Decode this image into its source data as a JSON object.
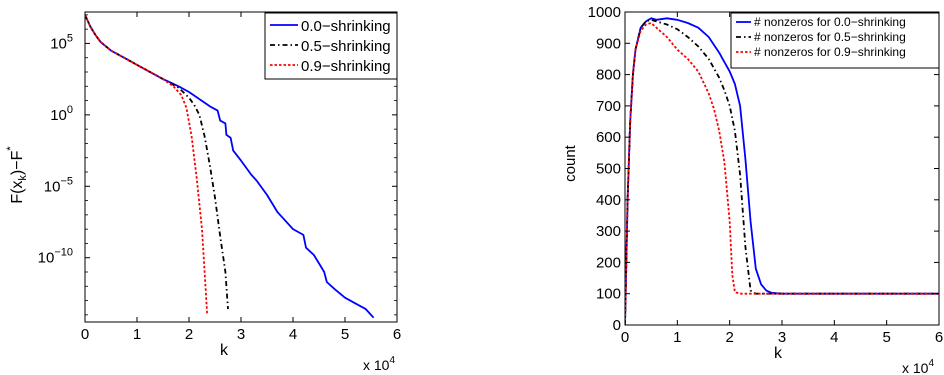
{
  "chart_data": [
    {
      "type": "line",
      "title": "",
      "xlabel": "k",
      "ylabel": "F(x_k)-F^*",
      "ylabel_parts": {
        "base": "F(x",
        "sub": "k",
        "mid": ")−F",
        "sup": "*"
      },
      "x_multiplier": "x 10",
      "x_multiplier_exp": "4",
      "xscale": "linear",
      "yscale": "log",
      "xlim": [
        0,
        6
      ],
      "ylim_log10": [
        -14.5,
        7.2
      ],
      "xticks": [
        0,
        1,
        2,
        3,
        4,
        5,
        6
      ],
      "yticks_log10": [
        5,
        0,
        -5,
        -10
      ],
      "ytick_labels": [
        {
          "base": "10",
          "exp": "5"
        },
        {
          "base": "10",
          "exp": "0"
        },
        {
          "base": "10",
          "exp": "−5"
        },
        {
          "base": "10",
          "exp": "−10"
        }
      ],
      "legend": {
        "placement": "top-right"
      },
      "grid": false,
      "series": [
        {
          "name": "0.0−shrinking",
          "color": "#0000ff",
          "dash": "solid",
          "x": [
            0,
            0.05,
            0.1,
            0.2,
            0.3,
            0.5,
            0.8,
            1.0,
            1.2,
            1.5,
            1.8,
            2.0,
            2.2,
            2.4,
            2.55,
            2.6,
            2.7,
            2.72,
            2.8,
            2.85,
            3.0,
            3.2,
            3.3,
            3.5,
            3.7,
            3.8,
            4.0,
            4.2,
            4.25,
            4.4,
            4.5,
            4.6,
            4.65,
            4.8,
            5.0,
            5.2,
            5.4,
            5.5,
            5.55
          ],
          "y_log10": [
            7.0,
            6.6,
            6.2,
            5.6,
            5.1,
            4.5,
            3.9,
            3.5,
            3.1,
            2.5,
            2.0,
            1.6,
            1.1,
            0.6,
            0.3,
            -0.4,
            -0.6,
            -1.4,
            -1.6,
            -2.5,
            -3.2,
            -4.2,
            -4.6,
            -5.6,
            -6.8,
            -7.2,
            -8.0,
            -8.4,
            -9.3,
            -9.8,
            -10.4,
            -11.0,
            -11.7,
            -12.2,
            -12.8,
            -13.2,
            -13.6,
            -14.0,
            -14.2
          ]
        },
        {
          "name": "0.5−shrinking",
          "color": "#000000",
          "dash": "dashdot",
          "x": [
            0,
            0.05,
            0.1,
            0.2,
            0.3,
            0.5,
            0.8,
            1.0,
            1.2,
            1.5,
            1.8,
            2.0,
            2.1,
            2.2,
            2.3,
            2.4,
            2.5,
            2.6,
            2.7,
            2.75
          ],
          "y_log10": [
            7.0,
            6.6,
            6.2,
            5.6,
            5.1,
            4.5,
            3.9,
            3.5,
            3.1,
            2.5,
            1.9,
            1.2,
            0.7,
            0.0,
            -1.5,
            -3.5,
            -5.8,
            -8.5,
            -11.0,
            -13.6
          ]
        },
        {
          "name": "0.9−shrinking",
          "color": "#ff0000",
          "dash": "dotted",
          "x": [
            0,
            0.05,
            0.1,
            0.2,
            0.3,
            0.5,
            0.8,
            1.0,
            1.2,
            1.5,
            1.7,
            1.85,
            1.95,
            2.05,
            2.15,
            2.25,
            2.3,
            2.35
          ],
          "y_log10": [
            7.0,
            6.6,
            6.2,
            5.6,
            5.1,
            4.5,
            3.9,
            3.5,
            3.1,
            2.5,
            2.0,
            1.4,
            0.5,
            -1.5,
            -4.5,
            -8.0,
            -11.0,
            -14.0
          ]
        }
      ]
    },
    {
      "type": "line",
      "title": "",
      "xlabel": "k",
      "ylabel": "count",
      "x_multiplier": "x 10",
      "x_multiplier_exp": "4",
      "xscale": "linear",
      "yscale": "linear",
      "xlim": [
        0,
        6
      ],
      "ylim": [
        0,
        1000
      ],
      "xticks": [
        0,
        1,
        2,
        3,
        4,
        5,
        6
      ],
      "yticks": [
        0,
        100,
        200,
        300,
        400,
        500,
        600,
        700,
        800,
        900,
        1000
      ],
      "legend": {
        "placement": "top-right"
      },
      "grid": false,
      "series": [
        {
          "name": "# nonzeros for 0.0−shrinking",
          "color": "#0000ff",
          "dash": "solid",
          "x": [
            0,
            0.02,
            0.05,
            0.1,
            0.15,
            0.2,
            0.3,
            0.4,
            0.5,
            0.6,
            0.8,
            1.0,
            1.2,
            1.4,
            1.6,
            1.8,
            1.9,
            2.0,
            2.1,
            2.2,
            2.3,
            2.4,
            2.5,
            2.6,
            2.7,
            2.8,
            3.0,
            3.5,
            4.0,
            5.0,
            6.0
          ],
          "y": [
            0,
            150,
            400,
            650,
            800,
            880,
            950,
            970,
            980,
            975,
            980,
            975,
            965,
            950,
            920,
            870,
            840,
            810,
            770,
            700,
            530,
            330,
            180,
            130,
            110,
            103,
            100,
            100,
            100,
            100,
            100
          ]
        },
        {
          "name": "# nonzeros for 0.5−shrinking",
          "color": "#000000",
          "dash": "dashdot",
          "x": [
            0,
            0.02,
            0.05,
            0.1,
            0.15,
            0.2,
            0.3,
            0.4,
            0.5,
            0.6,
            0.8,
            1.0,
            1.2,
            1.4,
            1.6,
            1.8,
            1.9,
            2.0,
            2.1,
            2.2,
            2.3,
            2.4,
            2.5,
            2.6,
            3.0,
            4.0,
            5.0,
            6.0
          ],
          "y": [
            0,
            150,
            400,
            650,
            800,
            880,
            950,
            970,
            975,
            970,
            960,
            945,
            920,
            890,
            850,
            790,
            750,
            700,
            620,
            480,
            250,
            110,
            100,
            100,
            100,
            100,
            100,
            100
          ]
        },
        {
          "name": "# nonzeros for 0.9−shrinking",
          "color": "#ff0000",
          "dash": "dotted",
          "x": [
            0,
            0.02,
            0.05,
            0.1,
            0.15,
            0.2,
            0.3,
            0.4,
            0.5,
            0.6,
            0.8,
            1.0,
            1.2,
            1.4,
            1.6,
            1.7,
            1.8,
            1.9,
            2.0,
            2.05,
            2.1,
            2.2,
            3.0,
            4.0,
            5.0,
            6.0
          ],
          "y": [
            0,
            150,
            400,
            650,
            800,
            880,
            940,
            960,
            965,
            950,
            920,
            880,
            850,
            810,
            740,
            690,
            620,
            520,
            330,
            160,
            105,
            100,
            100,
            100,
            100,
            100
          ]
        }
      ]
    }
  ]
}
